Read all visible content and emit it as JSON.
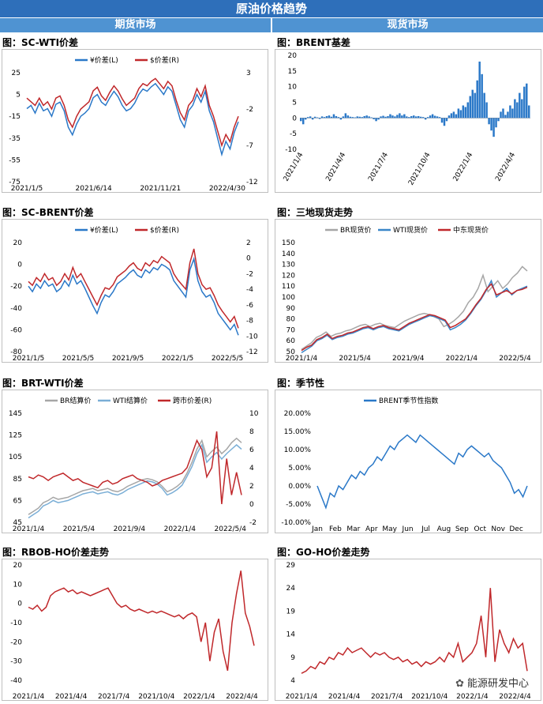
{
  "page": {
    "title": "原油价格趋势",
    "left_section": "期货市场",
    "right_section": "现货市场",
    "watermark": "能源研发中心",
    "watermark_icon": "wechat-icon"
  },
  "chart_data": [
    {
      "id": "c1",
      "panel_title": "图：SC-WTI价差",
      "type": "line",
      "legend": [
        "¥价差(L)",
        "$价差(R)"
      ],
      "left_ticks": [
        "25",
        "5",
        "-15",
        "-35",
        "-55",
        "-75"
      ],
      "right_ticks": [
        "3",
        "-2",
        "-7",
        "-12"
      ],
      "x_ticks": [
        "2021/1/5",
        "2021/6/14",
        "2021/11/21",
        "2022/4/30"
      ],
      "ylim_left": [
        -75,
        25
      ],
      "ylim_right": [
        -12,
        3
      ],
      "colors": [
        "#2a78c8",
        "#c0282b"
      ],
      "series": [
        {
          "name": "¥价差(L)",
          "values": [
            -8,
            -5,
            -12,
            -3,
            -10,
            -8,
            -15,
            -4,
            -2,
            -10,
            -25,
            -32,
            -22,
            -15,
            -12,
            -8,
            2,
            5,
            -2,
            -5,
            2,
            8,
            3,
            -5,
            -10,
            -8,
            -3,
            5,
            10,
            8,
            12,
            15,
            10,
            5,
            12,
            8,
            -5,
            -18,
            -25,
            -10,
            -5,
            5,
            -2,
            8,
            -10,
            -20,
            -35,
            -50,
            -38,
            -45,
            -30,
            -20
          ]
        },
        {
          "name": "$价差(R)",
          "values": [
            -0.5,
            -1,
            -1.5,
            -0.5,
            -1.5,
            -1,
            -2,
            -0.5,
            -0.2,
            -1.5,
            -3.5,
            -4.5,
            -3,
            -2,
            -1.5,
            -1,
            0.5,
            1,
            -0.2,
            -0.8,
            0.3,
            1.2,
            0.5,
            -0.6,
            -1.5,
            -1,
            -0.5,
            0.8,
            1.5,
            1.2,
            1.8,
            2.2,
            1.5,
            0.8,
            1.8,
            1.2,
            -0.8,
            -2.5,
            -3.5,
            -1.5,
            -0.8,
            0.8,
            -0.3,
            1.2,
            -1.5,
            -3,
            -5,
            -7,
            -5.5,
            -6.5,
            -4.5,
            -3
          ]
        }
      ]
    },
    {
      "id": "c2",
      "panel_title": "图：BRENT基差",
      "type": "bar",
      "left_ticks": [
        "20",
        "15",
        "10",
        "5",
        "0",
        "-5",
        "-10"
      ],
      "x_ticks": [
        "2021/1/4",
        "2021/4/4",
        "2021/7/4",
        "2021/10/4",
        "2022/1/4",
        "2022/4/4"
      ],
      "ylim": [
        -10,
        20
      ],
      "color": "#2a78c8",
      "values": [
        -1,
        -2,
        -0.5,
        0.3,
        0.5,
        -0.5,
        0.4,
        0.2,
        -0.3,
        0.5,
        0.3,
        0.6,
        0.8,
        0.4,
        1.2,
        0.6,
        0.3,
        -0.5,
        0.5,
        1.5,
        0.8,
        0.4,
        0.3,
        0.2,
        0.5,
        0.4,
        0.3,
        0.6,
        0.8,
        0.5,
        0.2,
        -0.4,
        -1,
        -0.5,
        0.5,
        0.7,
        0.4,
        0.6,
        1.2,
        0.8,
        0.5,
        1,
        1.5,
        0.8,
        1.2,
        0.5,
        0.3,
        0.6,
        0.8,
        0.5,
        0.6,
        0.4,
        0.3,
        -0.5,
        0.3,
        0.8,
        1.2,
        0.7,
        0.5,
        0.3,
        -1.5,
        -2.5,
        -1,
        0.8,
        1.5,
        2,
        1.2,
        3,
        2.5,
        4,
        3.5,
        5,
        7,
        9,
        8,
        12,
        18,
        14,
        8,
        5,
        -2,
        -4,
        -6,
        -3,
        -1,
        2,
        3,
        1,
        2,
        4,
        3,
        6,
        5,
        8,
        6,
        10,
        11,
        4
      ]
    },
    {
      "id": "c3",
      "panel_title": "图：SC-BRENT价差",
      "type": "line",
      "legend": [
        "¥价差(L)",
        "$价差(R)"
      ],
      "left_ticks": [
        "20",
        "0",
        "-20",
        "-40",
        "-60",
        "-80"
      ],
      "right_ticks": [
        "2",
        "0",
        "-2",
        "-4",
        "-6",
        "-8",
        "-10",
        "-12"
      ],
      "x_ticks": [
        "2021/1/5",
        "2021/5/5",
        "2021/9/5",
        "2022/1/5",
        "2022/5/5"
      ],
      "ylim_left": [
        -80,
        20
      ],
      "ylim_right": [
        -12,
        2
      ],
      "colors": [
        "#2a78c8",
        "#c0282b"
      ],
      "series": [
        {
          "name": "¥价差(L)",
          "values": [
            -20,
            -25,
            -18,
            -22,
            -15,
            -20,
            -18,
            -25,
            -22,
            -15,
            -20,
            -10,
            -18,
            -15,
            -22,
            -30,
            -38,
            -45,
            -35,
            -28,
            -30,
            -25,
            -18,
            -15,
            -12,
            -8,
            -5,
            -10,
            -12,
            -5,
            -8,
            -3,
            -5,
            0,
            -2,
            -5,
            -15,
            -20,
            -25,
            -30,
            -5,
            5,
            -15,
            -25,
            -30,
            -28,
            -35,
            -45,
            -50,
            -55,
            -60,
            -55,
            -65
          ]
        },
        {
          "name": "$价差(R)",
          "values": [
            -3,
            -3.5,
            -2.5,
            -3,
            -2,
            -2.8,
            -2.5,
            -3.5,
            -3,
            -2,
            -2.8,
            -1.2,
            -2.5,
            -2,
            -3,
            -4,
            -5,
            -6,
            -4.8,
            -3.8,
            -4,
            -3.4,
            -2.4,
            -2,
            -1.6,
            -1,
            -0.6,
            -1.3,
            -1.6,
            -0.6,
            -1,
            -0.3,
            -0.6,
            0.2,
            -0.2,
            -0.6,
            -2,
            -2.8,
            -3.4,
            -4,
            -0.6,
            1.2,
            -2,
            -3.4,
            -4,
            -3.8,
            -4.8,
            -6,
            -6.8,
            -7.5,
            -8.2,
            -7.5,
            -9
          ]
        }
      ]
    },
    {
      "id": "c4",
      "panel_title": "图：三地现货走势",
      "type": "line",
      "legend": [
        "BR现货价",
        "WTI现货价",
        "中东现货价"
      ],
      "left_ticks": [
        "150",
        "140",
        "130",
        "120",
        "110",
        "100",
        "90",
        "80",
        "70",
        "60",
        "50"
      ],
      "x_ticks": [
        "2021/1/4",
        "2021/5/4",
        "2021/9/4",
        "2022/1/4",
        "2022/5/4"
      ],
      "ylim": [
        50,
        150
      ],
      "colors": [
        "#a6a6a6",
        "#3a86c8",
        "#c0282b"
      ],
      "series": [
        {
          "name": "BR现货价",
          "values": [
            52,
            55,
            58,
            63,
            65,
            68,
            64,
            66,
            67,
            69,
            70,
            72,
            74,
            75,
            73,
            75,
            76,
            74,
            73,
            72,
            75,
            78,
            80,
            82,
            84,
            85,
            84,
            82,
            80,
            73,
            75,
            78,
            82,
            87,
            95,
            100,
            108,
            120,
            105,
            110,
            115,
            108,
            112,
            118,
            122,
            128,
            124
          ]
        },
        {
          "name": "WTI现货价",
          "values": [
            49,
            52,
            55,
            60,
            62,
            65,
            61,
            63,
            64,
            66,
            67,
            69,
            71,
            72,
            70,
            72,
            73,
            71,
            70,
            69,
            72,
            75,
            77,
            79,
            81,
            83,
            82,
            80,
            78,
            70,
            72,
            75,
            79,
            85,
            92,
            98,
            106,
            115,
            100,
            104,
            108,
            102,
            106,
            108,
            110
          ]
        },
        {
          "name": "中东现货价",
          "values": [
            51,
            54,
            56,
            61,
            63,
            66,
            62,
            64,
            65,
            67,
            68,
            70,
            72,
            73,
            71,
            73,
            74,
            72,
            71,
            70,
            73,
            76,
            78,
            80,
            82,
            84,
            83,
            81,
            79,
            72,
            74,
            77,
            80,
            86,
            93,
            99,
            107,
            112,
            102,
            104,
            106,
            103,
            106,
            107,
            109
          ]
        }
      ]
    },
    {
      "id": "c5",
      "panel_title": "图：BRT-WTI价差",
      "type": "line",
      "legend": [
        "BR结算价",
        "WTI结算价",
        "跨市价差(R)"
      ],
      "left_ticks": [
        "145",
        "125",
        "105",
        "85",
        "65",
        "45"
      ],
      "right_ticks": [
        "10",
        "8",
        "6",
        "4",
        "2",
        "0",
        "-2"
      ],
      "x_ticks": [
        "2021/1/4",
        "2021/5/4",
        "2021/9/4",
        "2022/1/4",
        "2022/5/4"
      ],
      "ylim_left": [
        45,
        145
      ],
      "ylim_right": [
        -2,
        10
      ],
      "colors": [
        "#a6a6a6",
        "#7aaed6",
        "#c0282b"
      ],
      "series": [
        {
          "name": "BR结算价",
          "values": [
            52,
            55,
            58,
            63,
            65,
            68,
            66,
            67,
            68,
            70,
            72,
            74,
            75,
            76,
            74,
            75,
            76,
            74,
            73,
            75,
            78,
            80,
            82,
            84,
            85,
            84,
            82,
            78,
            73,
            75,
            78,
            82,
            90,
            100,
            112,
            120,
            105,
            110,
            114,
            108,
            112,
            118,
            122,
            118
          ]
        },
        {
          "name": "WTI结算价",
          "values": [
            49,
            52,
            55,
            60,
            62,
            65,
            63,
            64,
            65,
            67,
            69,
            71,
            72,
            73,
            71,
            72,
            73,
            71,
            70,
            72,
            75,
            77,
            79,
            81,
            83,
            82,
            80,
            76,
            70,
            72,
            75,
            79,
            87,
            96,
            108,
            116,
            100,
            105,
            109,
            103,
            108,
            112,
            116,
            112
          ]
        },
        {
          "name": "跨市价差(R)",
          "values": [
            3,
            2.8,
            3.2,
            3,
            2.6,
            3,
            3.2,
            3.4,
            3,
            2.6,
            2.8,
            2.4,
            2.2,
            2,
            1.8,
            2.4,
            2.6,
            2.2,
            2.4,
            2.8,
            3,
            3.2,
            2.8,
            2.6,
            2.4,
            2,
            2.2,
            2.6,
            2.8,
            3,
            3.2,
            3.4,
            4,
            5.5,
            7,
            6,
            3,
            4,
            8,
            0,
            5,
            1,
            3.5,
            1
          ]
        }
      ]
    },
    {
      "id": "c6",
      "panel_title": "图：季节性",
      "type": "line",
      "legend": [
        "BRENT季节性指数"
      ],
      "left_ticks": [
        "20.00%",
        "15.00%",
        "10.00%",
        "5.00%",
        "0.00%",
        "-5.00%",
        "-10.00%"
      ],
      "x_ticks": [
        "Jan",
        "Feb",
        "Mar",
        "Apr",
        "May",
        "Jun",
        "Jul",
        "Aug",
        "Sep",
        "Oct",
        "Nov",
        "Dec"
      ],
      "ylim": [
        -10,
        20
      ],
      "color": "#2a78c8",
      "values": [
        0,
        -3,
        -6,
        -2,
        -3,
        0,
        -1,
        1,
        3,
        2,
        4,
        3,
        5,
        6,
        8,
        7,
        9,
        11,
        10,
        12,
        13,
        14,
        13,
        12,
        14,
        13,
        12,
        11,
        10,
        9,
        8,
        7,
        6,
        9,
        8,
        10,
        11,
        10,
        9,
        8,
        9,
        7,
        6,
        5,
        3,
        1,
        -2,
        -1,
        -3,
        0
      ]
    },
    {
      "id": "c7",
      "panel_title": "图：RBOB-HO价差走势",
      "type": "line",
      "left_ticks": [
        "20",
        "10",
        "0",
        "-10",
        "-20",
        "-30",
        "-40"
      ],
      "x_ticks": [
        "2021/1/4",
        "2021/4/4",
        "2021/7/4",
        "2021/10/4",
        "2022/1/4",
        "2022/4/4"
      ],
      "ylim": [
        -40,
        20
      ],
      "color": "#c0282b",
      "values": [
        -2,
        -3,
        -1,
        -4,
        -2,
        4,
        6,
        7,
        8,
        6,
        7,
        5,
        6,
        5,
        4,
        5,
        6,
        7,
        8,
        4,
        0,
        -2,
        -1,
        -3,
        -4,
        -3,
        -4,
        -5,
        -4,
        -5,
        -4,
        -5,
        -6,
        -7,
        -6,
        -8,
        -6,
        -5,
        -7,
        -20,
        -10,
        -30,
        -15,
        -8,
        -25,
        -35,
        -10,
        5,
        17,
        -5,
        -12,
        -22
      ]
    },
    {
      "id": "c8",
      "panel_title": "图：GO-HO价差走势",
      "type": "line",
      "left_ticks": [
        "29",
        "24",
        "19",
        "14",
        "9",
        "4"
      ],
      "x_ticks": [
        "2021/1/4",
        "2021/4/4",
        "2021/7/4",
        "2021/10/4",
        "2022/1/4",
        "2022/4/4"
      ],
      "ylim": [
        4,
        29
      ],
      "color": "#c0282b",
      "values": [
        5.5,
        6,
        7,
        6.5,
        8,
        7.5,
        9,
        8.5,
        10,
        9.5,
        11,
        10,
        10.5,
        11,
        10,
        9,
        10,
        9.5,
        10,
        9,
        8.5,
        9,
        8,
        8.5,
        7.5,
        8,
        7,
        8,
        7.5,
        8,
        9,
        8,
        10,
        9,
        12,
        8,
        9,
        10,
        12,
        18,
        9,
        24,
        8,
        15,
        12,
        10,
        13,
        11,
        12,
        6
      ]
    }
  ]
}
